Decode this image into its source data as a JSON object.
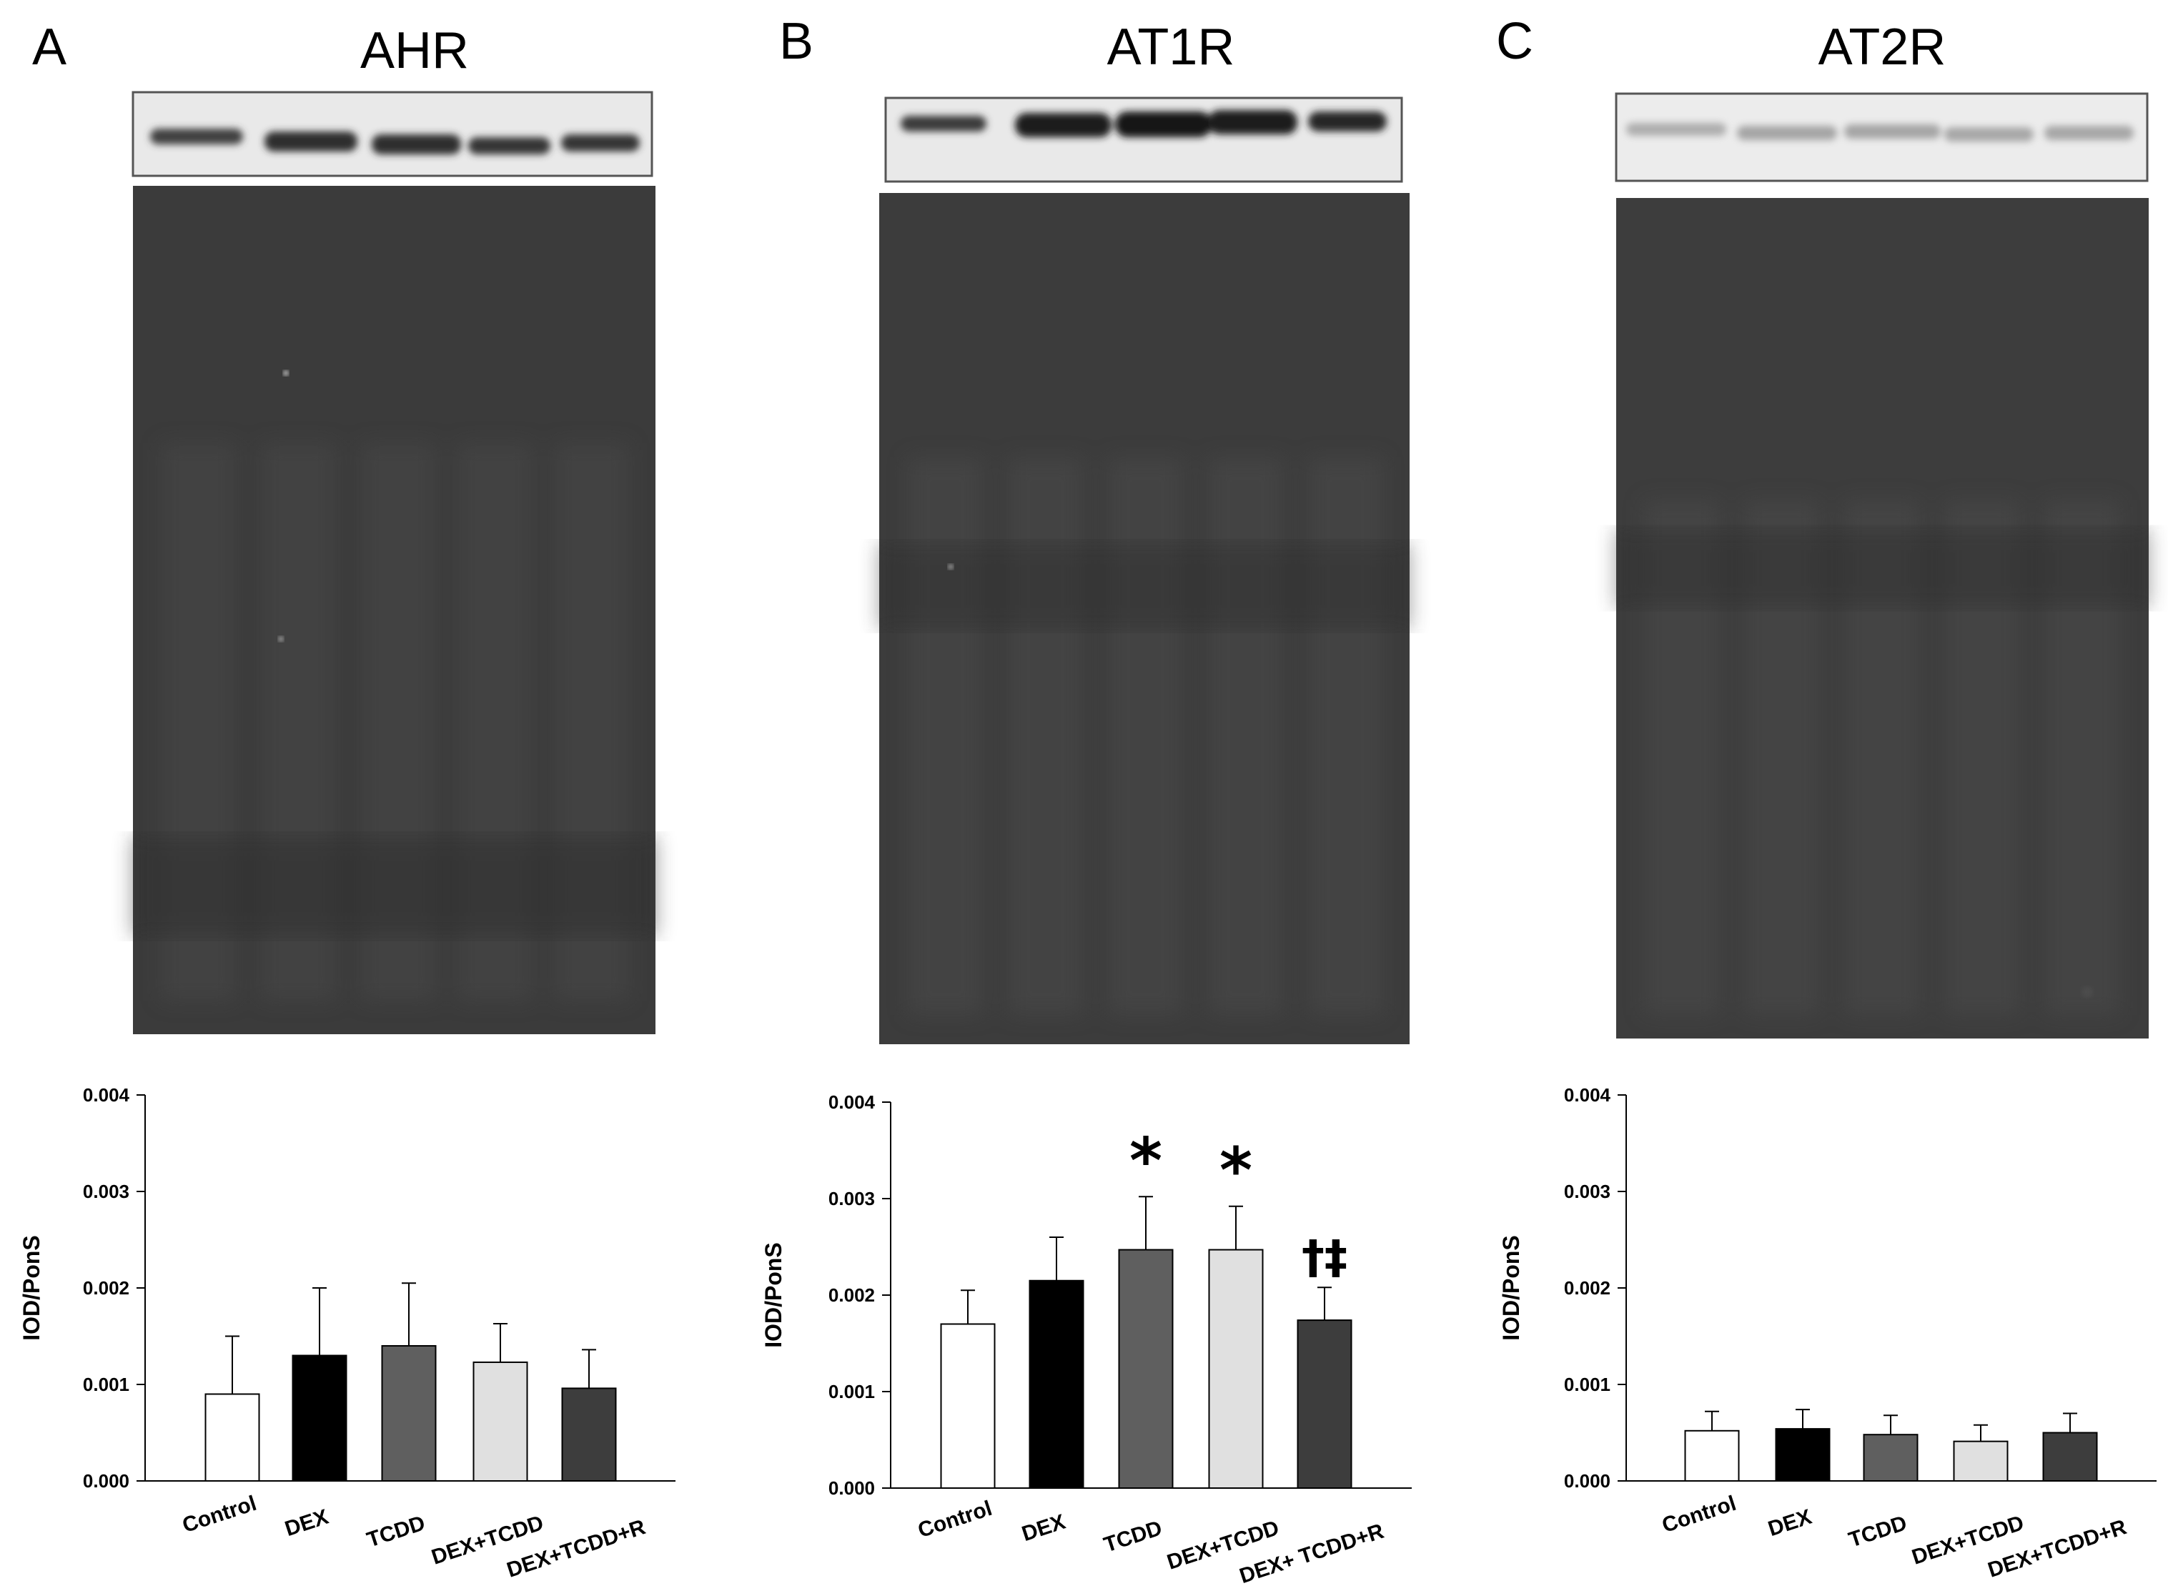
{
  "chart_data": [
    {
      "type": "bar",
      "panel": "A",
      "title": "AHR",
      "ylabel": "IOD/PonS",
      "xlabel": "",
      "ylim": [
        0,
        0.004
      ],
      "yticks": [
        "0.000",
        "0.001",
        "0.002",
        "0.003",
        "0.004"
      ],
      "categories": [
        "Control",
        "DEX",
        "TCDD",
        "DEX+TCDD",
        "DEX+TCDD+R"
      ],
      "series": [
        {
          "values": [
            0.0009,
            0.0013,
            0.0014,
            0.00123,
            0.00096
          ],
          "errors": [
            0.0006,
            0.0007,
            0.00065,
            0.0004,
            0.0004
          ]
        }
      ],
      "bar_colors": [
        "#ffffff",
        "#000000",
        "#5f5f5f",
        "#e0e0e0",
        "#3d3d3d"
      ],
      "annotations": [
        "",
        "",
        "",
        "",
        ""
      ]
    },
    {
      "type": "bar",
      "panel": "B",
      "title": "AT1R",
      "ylabel": "IOD/PonS",
      "xlabel": "",
      "ylim": [
        0,
        0.004
      ],
      "yticks": [
        "0.000",
        "0.001",
        "0.002",
        "0.003",
        "0.004"
      ],
      "categories": [
        "Control",
        "DEX",
        "TCDD",
        "DEX+TCDD",
        "DEX+ TCDD+R"
      ],
      "series": [
        {
          "values": [
            0.0017,
            0.00215,
            0.00247,
            0.00247,
            0.00174
          ],
          "errors": [
            0.00035,
            0.00045,
            0.00055,
            0.00045,
            0.00034
          ]
        }
      ],
      "bar_colors": [
        "#ffffff",
        "#000000",
        "#5f5f5f",
        "#e0e0e0",
        "#3d3d3d"
      ],
      "annotations": [
        "",
        "",
        "*",
        "*",
        "†‡"
      ]
    },
    {
      "type": "bar",
      "panel": "C",
      "title": "AT2R",
      "ylabel": "IOD/PonS",
      "xlabel": "",
      "ylim": [
        0,
        0.004
      ],
      "yticks": [
        "0.000",
        "0.001",
        "0.002",
        "0.003",
        "0.004"
      ],
      "categories": [
        "Control",
        "DEX",
        "TCDD",
        "DEX+TCDD",
        "DEX+TCDD+R"
      ],
      "series": [
        {
          "values": [
            0.00052,
            0.00054,
            0.00048,
            0.00041,
            0.0005
          ],
          "errors": [
            0.0002,
            0.0002,
            0.0002,
            0.00017,
            0.0002
          ]
        }
      ],
      "bar_colors": [
        "#ffffff",
        "#000000",
        "#5f5f5f",
        "#e0e0e0",
        "#3d3d3d"
      ],
      "annotations": [
        "",
        "",
        "",
        "",
        ""
      ]
    }
  ],
  "blot_colors": {
    "band_bg": "#e9e9e9",
    "band": "#2e2e2e",
    "membrane": "#3b3b3b"
  }
}
